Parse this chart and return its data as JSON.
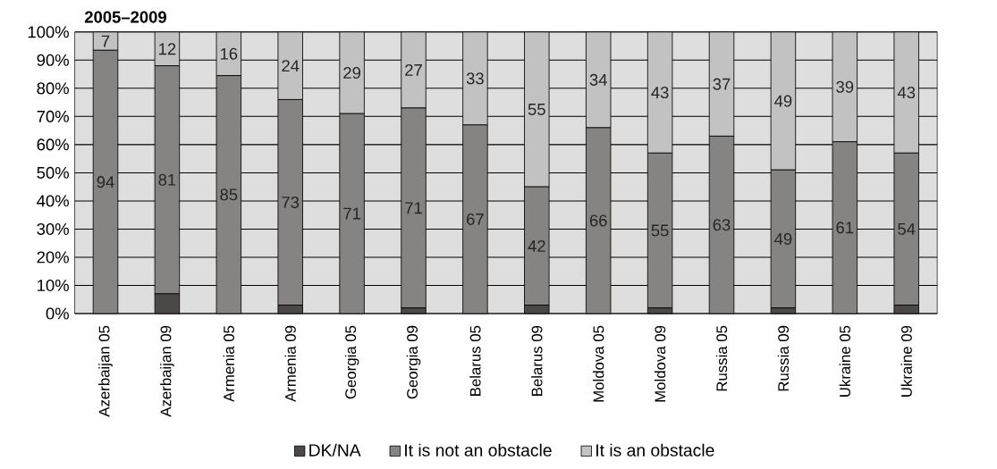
{
  "chart_data": {
    "type": "bar",
    "stacked": true,
    "title": "2005–2009",
    "categories": [
      "Azerbaijan 05",
      "Azerbaijan 09",
      "Armenia 05",
      "Armenia 09",
      "Georgia 05",
      "Georgia 09",
      "Belarus 05",
      "Belarus 09",
      "Moldova 05",
      "Moldova 09",
      "Russia 05",
      "Russia 09",
      "Ukraine 05",
      "Ukraine 09"
    ],
    "series": [
      {
        "name": "DK/NA",
        "color": "#4d4848",
        "values": [
          0,
          7,
          0,
          3,
          0,
          2,
          0,
          3,
          0,
          2,
          0,
          2,
          0,
          3
        ]
      },
      {
        "name": "It is not an obstacle",
        "color": "#858482",
        "values": [
          93.5,
          81,
          84.5,
          73,
          71,
          71,
          67,
          42,
          66,
          55,
          63,
          49,
          61,
          54
        ],
        "value_labels": [
          "94",
          "81",
          "85",
          "73",
          "71",
          "71",
          "67",
          "42",
          "66",
          "55",
          "63",
          "49",
          "61",
          "54"
        ]
      },
      {
        "name": "It is an obstacle",
        "color": "#c2c2c2",
        "values": [
          6.5,
          12,
          15.5,
          24,
          29,
          27,
          33,
          55,
          34,
          43,
          37,
          49,
          39,
          43
        ],
        "value_labels": [
          "7",
          "12",
          "16",
          "24",
          "29",
          "27",
          "33",
          "55",
          "34",
          "43",
          "37",
          "49",
          "39",
          "43"
        ]
      }
    ],
    "ylim": [
      0,
      100
    ],
    "yticks": [
      {
        "value": 0,
        "label": "0%"
      },
      {
        "value": 10,
        "label": "10%"
      },
      {
        "value": 20,
        "label": "20%"
      },
      {
        "value": 30,
        "label": "30%"
      },
      {
        "value": 40,
        "label": "40%"
      },
      {
        "value": 50,
        "label": "50%"
      },
      {
        "value": 60,
        "label": "60%"
      },
      {
        "value": 70,
        "label": "70%"
      },
      {
        "value": 80,
        "label": "80%"
      },
      {
        "value": 90,
        "label": "90%"
      },
      {
        "value": 100,
        "label": "100%"
      }
    ],
    "grid": "y",
    "legend": "bottom"
  }
}
